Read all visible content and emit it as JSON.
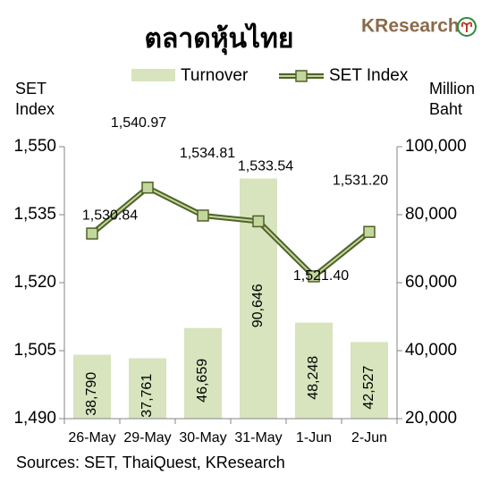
{
  "chart_data": {
    "type": "combo",
    "title": "ตลาดหุ้นไทย",
    "logo": "KResearch",
    "source": "Sources: SET, ThaiQuest, KResearch",
    "ylabel": "SET Index",
    "y2label": "Million Baht",
    "categories": [
      "26-May",
      "29-May",
      "30-May",
      "31-May",
      "1-Jun",
      "2-Jun"
    ],
    "series": [
      {
        "name": "Turnover",
        "type": "bar",
        "axis": "y2",
        "color": "#d7e4bd",
        "values": [
          38790,
          37761,
          46659,
          90646,
          48248,
          42527
        ],
        "value_labels": [
          "38,790",
          "37,761",
          "46,659",
          "90,646",
          "48,248",
          "42,527"
        ]
      },
      {
        "name": "SET Index",
        "type": "line",
        "axis": "y",
        "color": "#4f6228",
        "values": [
          1530.84,
          1540.97,
          1534.81,
          1533.54,
          1521.4,
          1531.2
        ],
        "value_labels": [
          "1,530.84",
          "1,540.97",
          "1,534.81",
          "1,533.54",
          "1,521.40",
          "1,531.20"
        ]
      }
    ],
    "ylim": [
      1490,
      1550
    ],
    "yticks": [
      {
        "value": 1490,
        "label": "1,490"
      },
      {
        "value": 1505,
        "label": "1,505"
      },
      {
        "value": 1520,
        "label": "1,520"
      },
      {
        "value": 1535,
        "label": "1,535"
      },
      {
        "value": 1550,
        "label": "1,550"
      }
    ],
    "y2lim": [
      20000,
      100000
    ],
    "y2ticks": [
      {
        "value": 20000,
        "label": "20,000"
      },
      {
        "value": 40000,
        "label": "40,000"
      },
      {
        "value": 60000,
        "label": "60,000"
      },
      {
        "value": 80000,
        "label": "80,000"
      },
      {
        "value": 100000,
        "label": "100,000"
      }
    ],
    "legend": "top"
  }
}
